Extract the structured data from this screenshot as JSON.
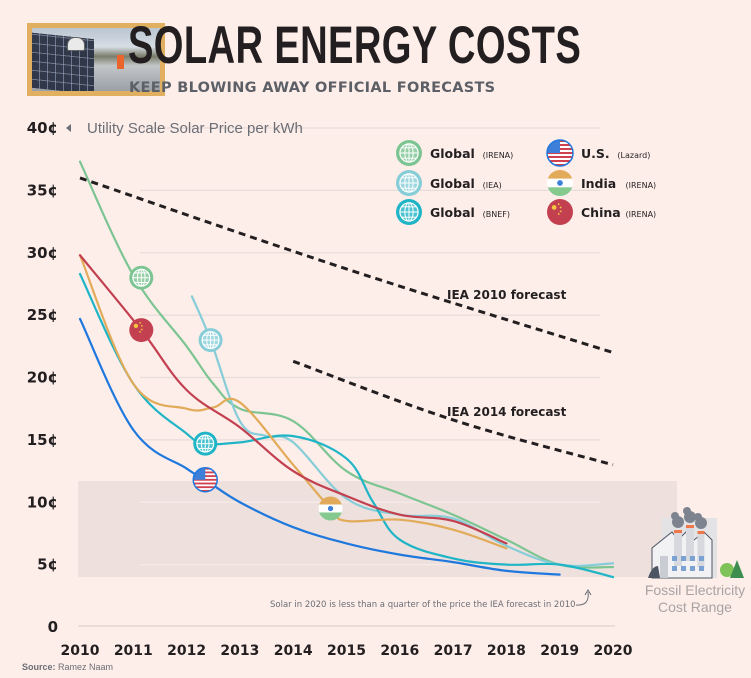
{
  "header": {
    "title": "SOLAR ENERGY COSTS",
    "subtitle": "KEEP BLOWING AWAY OFFICIAL FORECASTS",
    "photo_alt": "Workers installing solar panels"
  },
  "source": {
    "label": "Source:",
    "value": "Ramez Naam"
  },
  "chart_data": {
    "type": "line",
    "title": "SOLAR ENERGY COSTS",
    "subtitle": "KEEP BLOWING AWAY OFFICIAL FORECASTS",
    "xlabel": "",
    "ylabel": "Utility Scale Solar Price per kWh",
    "xlim": [
      2010,
      2020
    ],
    "ylim": [
      0,
      40
    ],
    "x_ticks": [
      "2010",
      "2011",
      "2012",
      "2013",
      "2014",
      "2015",
      "2016",
      "2017",
      "2018",
      "2019",
      "2020"
    ],
    "y_ticks": [
      {
        "value": 0,
        "label": "0"
      },
      {
        "value": 5,
        "label": "5¢"
      },
      {
        "value": 10,
        "label": "10¢"
      },
      {
        "value": 15,
        "label": "15¢"
      },
      {
        "value": 20,
        "label": "20¢"
      },
      {
        "value": 25,
        "label": "25¢"
      },
      {
        "value": 30,
        "label": "30¢"
      },
      {
        "value": 35,
        "label": "35¢"
      },
      {
        "value": 40,
        "label": "40¢"
      }
    ],
    "grid": true,
    "legend_position": "top-right",
    "series": [
      {
        "name": "Global",
        "source": "(IRENA)",
        "icon": "globe-icon",
        "color": "#7cc592",
        "marker": {
          "x": 2011.15,
          "y": 28
        },
        "x": [
          2010,
          2011,
          2012,
          2012.5,
          2013,
          2014,
          2015,
          2016,
          2017,
          2018,
          2019,
          2020
        ],
        "y": [
          37.3,
          28.2,
          22.5,
          19.5,
          17.5,
          16.5,
          12.5,
          10.7,
          9.0,
          7.0,
          5.0,
          4.8
        ]
      },
      {
        "name": "Global",
        "source": "(IEA)",
        "icon": "globe-icon",
        "color": "#86cdd8",
        "marker": {
          "x": 2012.45,
          "y": 23
        },
        "x": [
          2012.1,
          2012.45,
          2013,
          2013.5,
          2014,
          2015,
          2016,
          2017,
          2018,
          2019,
          2020
        ],
        "y": [
          26.5,
          23.0,
          16.5,
          15.3,
          14.8,
          10.3,
          9.0,
          8.7,
          6.5,
          5.0,
          5.1
        ]
      },
      {
        "name": "Global",
        "source": "(BNEF)",
        "icon": "globe-icon",
        "color": "#1fb5c6",
        "marker": {
          "x": 2012.35,
          "y": 14.7
        },
        "x": [
          2010,
          2011,
          2012,
          2012.35,
          2013,
          2014,
          2015,
          2015.5,
          2016,
          2017,
          2018,
          2019,
          2020
        ],
        "y": [
          28.3,
          19.5,
          15.5,
          14.7,
          14.8,
          15.3,
          13.5,
          10.0,
          7.0,
          5.5,
          5.0,
          5.0,
          4.0
        ]
      },
      {
        "name": "U.S.",
        "source": "(Lazard)",
        "icon": "us-flag-icon",
        "color": "#1f78dd",
        "marker": {
          "x": 2012.35,
          "y": 11.8
        },
        "x": [
          2010,
          2011,
          2012,
          2012.35,
          2013,
          2014,
          2015,
          2016,
          2017,
          2018,
          2019
        ],
        "y": [
          24.7,
          15.8,
          12.7,
          11.8,
          10.0,
          8.0,
          6.7,
          5.8,
          5.2,
          4.5,
          4.2
        ]
      },
      {
        "name": "India",
        "source": "(IRENA)",
        "icon": "india-flag-icon",
        "color": "#e2ab5a",
        "marker": {
          "x": 2014.7,
          "y": 9.5
        },
        "x": [
          2010,
          2011,
          2012,
          2012.5,
          2013,
          2014,
          2014.7,
          2015,
          2016,
          2017,
          2018
        ],
        "y": [
          29.8,
          19.5,
          17.5,
          17.6,
          18.0,
          13.0,
          9.5,
          8.5,
          8.6,
          7.8,
          6.3
        ]
      },
      {
        "name": "China",
        "source": "(IRENA)",
        "icon": "china-flag-icon",
        "color": "#c2404f",
        "marker": {
          "x": 2011.15,
          "y": 23.8
        },
        "x": [
          2010,
          2011.15,
          2012,
          2013,
          2014,
          2015,
          2016,
          2017,
          2018
        ],
        "y": [
          29.8,
          23.8,
          19.0,
          16.0,
          12.5,
          10.5,
          9.0,
          8.5,
          6.7
        ]
      }
    ],
    "forecasts": [
      {
        "name": "IEA 2010 forecast",
        "color": "#231f20",
        "x": [
          2010,
          2015,
          2020
        ],
        "y": [
          36,
          28.7,
          22
        ]
      },
      {
        "name": "IEA 2014 forecast",
        "color": "#231f20",
        "x": [
          2014,
          2017,
          2020
        ],
        "y": [
          21.3,
          16.6,
          13
        ]
      }
    ],
    "bands": [
      {
        "name": "Fossil Electricity Cost Range",
        "label_lines": [
          "Fossil Electricity",
          "Cost Range"
        ],
        "y_min": 4,
        "y_max": 11.7,
        "color": "#ede0dd"
      }
    ],
    "annotations": [
      {
        "text": "Solar in 2020 is less than a quarter of the price the IEA forecast in 2010"
      }
    ]
  }
}
